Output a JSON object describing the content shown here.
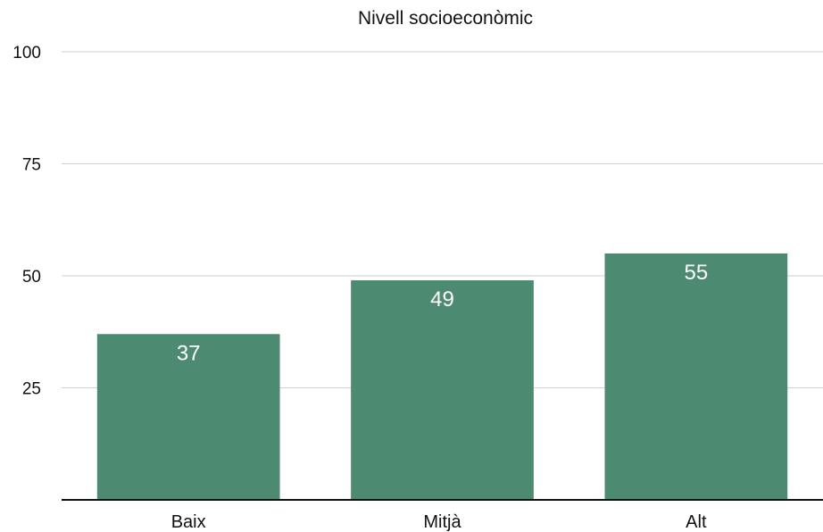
{
  "chart_data": {
    "type": "bar",
    "title": "Nivell socioeconòmic",
    "xlabel": "",
    "ylabel": "",
    "categories": [
      "Baix",
      "Mitjà",
      "Alt"
    ],
    "values": [
      37,
      49,
      55
    ],
    "data_labels": [
      "37",
      "49",
      "55"
    ],
    "ylim": [
      0,
      100
    ],
    "yticks": [
      25,
      50,
      75,
      100
    ],
    "ytick_labels": [
      "25",
      "50",
      "75",
      "100"
    ],
    "grid": true,
    "legend": "none",
    "bar_color": "#4d8a72",
    "data_label_color": "#ffffff"
  }
}
